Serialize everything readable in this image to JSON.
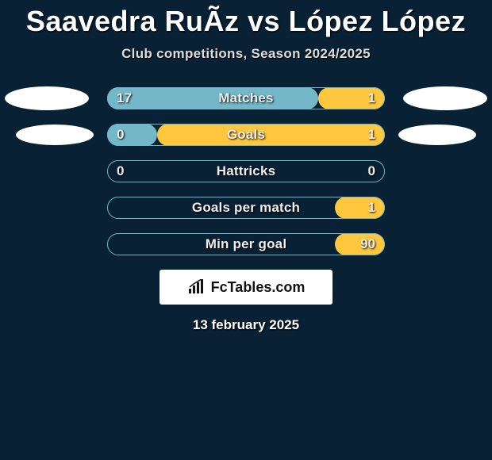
{
  "title": "Saavedra RuÃ­z vs López López",
  "subtitle": "Club competitions, Season 2024/2025",
  "date": "13 february 2025",
  "logo_text": "FcTables.com",
  "colors": {
    "background": "#082134",
    "bar_left": "#73b7c8",
    "bar_right": "#ffc73d",
    "bar_border": "#74b7c7",
    "oval": "#ffffff",
    "text": "#ffffff"
  },
  "stats": [
    {
      "label": "Matches",
      "left_val": "17",
      "right_val": "1",
      "left_pct": 76,
      "right_pct": 24,
      "show_ovals": "big"
    },
    {
      "label": "Goals",
      "left_val": "0",
      "right_val": "1",
      "left_pct": 18,
      "right_pct": 82,
      "show_ovals": "small"
    },
    {
      "label": "Hattricks",
      "left_val": "0",
      "right_val": "0",
      "left_pct": 0,
      "right_pct": 0,
      "show_ovals": "none"
    },
    {
      "label": "Goals per match",
      "left_val": "",
      "right_val": "1",
      "left_pct": 0,
      "right_pct": 18,
      "show_ovals": "none"
    },
    {
      "label": "Min per goal",
      "left_val": "",
      "right_val": "90",
      "left_pct": 0,
      "right_pct": 18,
      "show_ovals": "none"
    }
  ]
}
